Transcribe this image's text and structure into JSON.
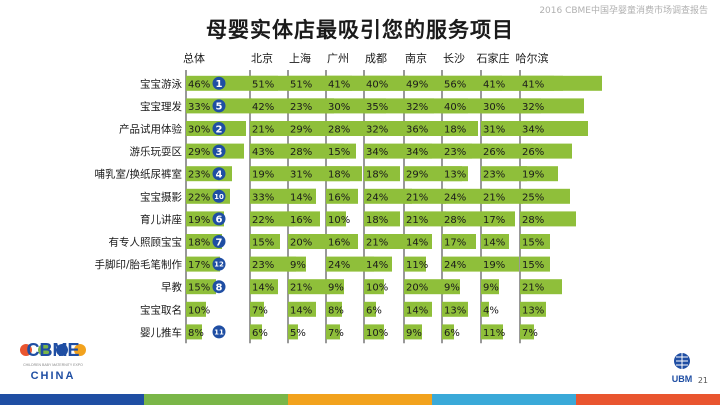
{
  "header": {
    "report_title": "2016 CBME中国孕婴童消费市场调查报告",
    "main_title": "母婴实体店最吸引您的服务项目"
  },
  "logo": {
    "text": "CBME",
    "subtext": "CHILDREN BABY MATERNITY EXPO",
    "country": "CHINA"
  },
  "ubm_logo": {
    "text": "UBM"
  },
  "slide_number": "21",
  "colors": {
    "bar_green": "#8fbf3a",
    "rank_badge": "#1f4ea3",
    "axis_line": "#333333",
    "footer": [
      "#1f4ea3",
      "#7ab648",
      "#f2a21d",
      "#3aa9d8",
      "#e9552f"
    ]
  },
  "chart_data": {
    "type": "bar",
    "layout_note": "small-multiple horizontal bar table",
    "categories": [
      "宝宝游泳",
      "宝宝理发",
      "产品试用体验",
      "游乐玩耍区",
      "哺乳室/换纸尿裤室",
      "宝宝摄影",
      "育儿讲座",
      "有专人照顾宝宝",
      "手脚印/胎毛笔制作",
      "早教",
      "宝宝取名",
      "婴儿推车"
    ],
    "ranks": [
      "1",
      "5",
      "2",
      "3",
      "4",
      "10",
      "6",
      "7",
      "12",
      "8",
      "",
      "11"
    ],
    "series": [
      {
        "name": "总体",
        "values": [
          46,
          33,
          30,
          29,
          23,
          22,
          19,
          18,
          17,
          15,
          10,
          8
        ]
      },
      {
        "name": "北京",
        "values": [
          51,
          42,
          21,
          43,
          19,
          33,
          22,
          15,
          23,
          14,
          7,
          6
        ]
      },
      {
        "name": "上海",
        "values": [
          51,
          23,
          29,
          28,
          31,
          14,
          16,
          20,
          9,
          21,
          14,
          5
        ]
      },
      {
        "name": "广州",
        "values": [
          41,
          30,
          28,
          15,
          18,
          16,
          10,
          16,
          24,
          9,
          8,
          7
        ]
      },
      {
        "name": "成都",
        "values": [
          40,
          35,
          32,
          34,
          18,
          24,
          18,
          21,
          14,
          10,
          6,
          10
        ]
      },
      {
        "name": "南京",
        "values": [
          49,
          32,
          36,
          34,
          29,
          21,
          21,
          14,
          11,
          20,
          14,
          9
        ]
      },
      {
        "name": "长沙",
        "values": [
          56,
          40,
          18,
          23,
          13,
          24,
          28,
          17,
          24,
          9,
          13,
          6
        ]
      },
      {
        "name": "石家庄",
        "values": [
          41,
          30,
          31,
          26,
          23,
          21,
          17,
          14,
          19,
          9,
          4,
          11
        ]
      },
      {
        "name": "哈尔滨",
        "values": [
          41,
          32,
          34,
          26,
          19,
          25,
          28,
          15,
          15,
          21,
          13,
          7
        ]
      }
    ],
    "value_suffix": "%",
    "xlim": [
      0,
      100
    ]
  }
}
